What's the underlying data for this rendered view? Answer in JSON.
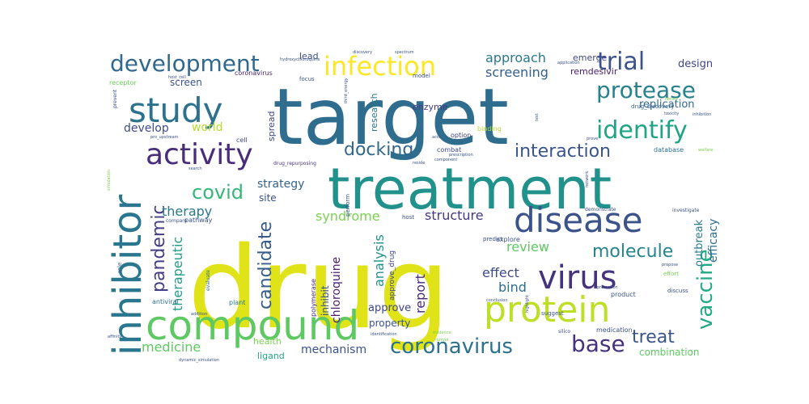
{
  "words": [
    {
      "text": "drug",
      "color": "#dfe318"
    },
    {
      "text": "target",
      "color": "#2f6d8e"
    },
    {
      "text": "treatment",
      "color": "#21918c"
    },
    {
      "text": "compound",
      "color": "#5ec962"
    },
    {
      "text": "inhibitor",
      "color": "#2a768e"
    },
    {
      "text": "protein",
      "color": "#bddf26"
    },
    {
      "text": "disease",
      "color": "#3b528b"
    },
    {
      "text": "virus",
      "color": "#46337e"
    },
    {
      "text": "study",
      "color": "#2c728e"
    },
    {
      "text": "activity",
      "color": "#472d7b"
    },
    {
      "text": "infection",
      "color": "#fde725"
    },
    {
      "text": "development",
      "color": "#31688e"
    },
    {
      "text": "trial",
      "color": "#3b528b"
    },
    {
      "text": "protease",
      "color": "#26828e"
    },
    {
      "text": "identify",
      "color": "#20a486"
    },
    {
      "text": "vaccine",
      "color": "#22a884"
    },
    {
      "text": "coronavirus",
      "color": "#2c728e"
    },
    {
      "text": "base",
      "color": "#46327e"
    },
    {
      "text": "treat",
      "color": "#3a548c"
    },
    {
      "text": "covid",
      "color": "#35b779"
    },
    {
      "text": "docking",
      "color": "#31688e"
    },
    {
      "text": "interaction",
      "color": "#3a548c"
    },
    {
      "text": "pandemic",
      "color": "#433e85"
    },
    {
      "text": "candidate",
      "color": "#365c8d"
    },
    {
      "text": "molecule",
      "color": "#25858e"
    },
    {
      "text": "structure",
      "color": "#453882"
    },
    {
      "text": "syndrome",
      "color": "#7ad151"
    },
    {
      "text": "therapy",
      "color": "#2a788e"
    },
    {
      "text": "review",
      "color": "#5ec962"
    },
    {
      "text": "effect",
      "color": "#3e4a89"
    },
    {
      "text": "bind",
      "color": "#2e6e8e"
    },
    {
      "text": "analysis",
      "color": "#20938c"
    },
    {
      "text": "report",
      "color": "#472a7a"
    },
    {
      "text": "approach",
      "color": "#2a788e"
    },
    {
      "text": "screening",
      "color": "#34608d"
    },
    {
      "text": "medicine",
      "color": "#5ec962"
    },
    {
      "text": "mechanism",
      "color": "#3b528b"
    },
    {
      "text": "approve",
      "color": "#404688"
    },
    {
      "text": "property",
      "color": "#3b528b"
    },
    {
      "text": "therapeutic",
      "color": "#1f9e89"
    },
    {
      "text": "chloroquine",
      "color": "#481d6f"
    },
    {
      "text": "develop",
      "color": "#3e4c8a"
    },
    {
      "text": "world",
      "color": "#b5de2b"
    },
    {
      "text": "screen",
      "color": "#3b528b"
    },
    {
      "text": "strategy",
      "color": "#33638d"
    },
    {
      "text": "site",
      "color": "#3b528b"
    },
    {
      "text": "efficacy",
      "color": "#2e6e8e"
    },
    {
      "text": "outbreak",
      "color": "#287c8e"
    },
    {
      "text": "replication",
      "color": "#31688e"
    },
    {
      "text": "design",
      "color": "#404688"
    },
    {
      "text": "emerge",
      "color": "#3f4889"
    },
    {
      "text": "remdesivir",
      "color": "#482071"
    },
    {
      "text": "combination",
      "color": "#5ec962"
    },
    {
      "text": "health",
      "color": "#7ad151"
    },
    {
      "text": "ligand",
      "color": "#22a884"
    },
    {
      "text": "research",
      "color": "#2a788e"
    },
    {
      "text": "enzyme",
      "color": "#443a83"
    },
    {
      "text": "lead",
      "color": "#3b528b"
    },
    {
      "text": "spread",
      "color": "#3e4989"
    },
    {
      "text": "inhibit",
      "color": "#3b528b"
    },
    {
      "text": "approve_drug",
      "color": "#404688"
    },
    {
      "text": "polymerase",
      "color": "#482071"
    },
    {
      "text": "coronavirus",
      "color": "#481f70"
    },
    {
      "text": "focus",
      "color": "#3b528b"
    },
    {
      "text": "model",
      "color": "#3b528b"
    },
    {
      "text": "pathway",
      "color": "#3b528b"
    },
    {
      "text": "cell",
      "color": "#3e4c8a"
    },
    {
      "text": "receptor",
      "color": "#6ccd5a"
    },
    {
      "text": "drug_discovery",
      "color": "#34608d"
    },
    {
      "text": "drug_repurposing",
      "color": "#46307e"
    },
    {
      "text": "binding",
      "color": "#b5de2b"
    },
    {
      "text": "option",
      "color": "#433e85"
    },
    {
      "text": "combat",
      "color": "#3e4a89"
    },
    {
      "text": "database",
      "color": "#2e6f8e"
    },
    {
      "text": "compare",
      "color": "#3b528b"
    },
    {
      "text": "evaluate",
      "color": "#2d708e"
    },
    {
      "text": "plant",
      "color": "#2a788e"
    },
    {
      "text": "antiviral",
      "color": "#2d708e"
    },
    {
      "text": "role",
      "color": "#31688e"
    },
    {
      "text": "host",
      "color": "#3b528b"
    },
    {
      "text": "perform",
      "color": "#3b528b"
    },
    {
      "text": "predict",
      "color": "#3b528b"
    },
    {
      "text": "explore",
      "color": "#3b528b"
    },
    {
      "text": "suggest",
      "color": "#3b528b"
    },
    {
      "text": "product",
      "color": "#3b528b"
    },
    {
      "text": "medication",
      "color": "#3b528b"
    },
    {
      "text": "discuss",
      "color": "#3b528b"
    },
    {
      "text": "silico",
      "color": "#3b528b"
    },
    {
      "text": "highlight",
      "color": "#3b528b"
    },
    {
      "text": "effort",
      "color": "#7ad151"
    },
    {
      "text": "propose",
      "color": "#3b528b"
    },
    {
      "text": "investigate",
      "color": "#3b528b"
    },
    {
      "text": "demonstrate",
      "color": "#3b528b"
    },
    {
      "text": "prevent",
      "color": "#3b528b"
    },
    {
      "text": "simulation",
      "color": "#7ad151"
    },
    {
      "text": "dynamic_simulation",
      "color": "#3b528b"
    },
    {
      "text": "identification",
      "color": "#3b528b"
    },
    {
      "text": "evidence",
      "color": "#7ad151"
    },
    {
      "text": "control",
      "color": "#7ad151"
    },
    {
      "text": "prescription",
      "color": "#3b528b"
    },
    {
      "text": "component",
      "color": "#3b528b"
    },
    {
      "text": "library",
      "color": "#7ad151"
    },
    {
      "text": "application",
      "color": "#3b528b"
    },
    {
      "text": "toxicity",
      "color": "#3b528b"
    },
    {
      "text": "inhibition",
      "color": "#3b528b"
    },
    {
      "text": "welfare",
      "color": "#7ad151"
    },
    {
      "text": "prove",
      "color": "#3b528b"
    },
    {
      "text": "promotion",
      "color": "#3b528b"
    },
    {
      "text": "pro_upstream",
      "color": "#3b528b"
    },
    {
      "text": "host_cell",
      "color": "#3b528b"
    },
    {
      "text": "hydroxychloroquine",
      "color": "#3b528b"
    },
    {
      "text": "acid",
      "color": "#3b528b"
    },
    {
      "text": "reside",
      "color": "#3b528b"
    },
    {
      "text": "affinity",
      "color": "#3b528b"
    },
    {
      "text": "addition",
      "color": "#3b528b"
    },
    {
      "text": "search",
      "color": "#3b528b"
    },
    {
      "text": "conclusion",
      "color": "#3b528b"
    },
    {
      "text": "third_energy",
      "color": "#3b528b"
    },
    {
      "text": "discovery",
      "color": "#3b528b"
    },
    {
      "text": "spectrum",
      "color": "#3b528b"
    },
    {
      "text": "test",
      "color": "#3b528b"
    },
    {
      "text": "network",
      "color": "#3b528b"
    }
  ]
}
